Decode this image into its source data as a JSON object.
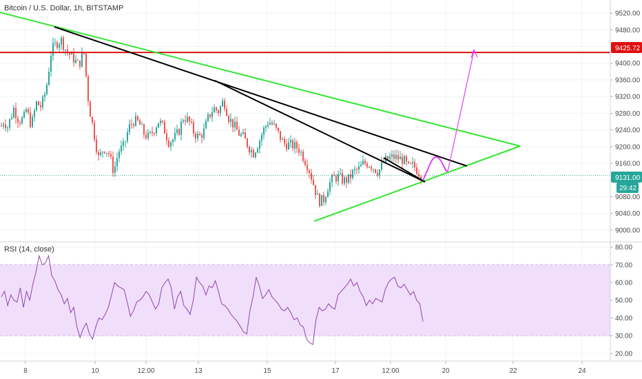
{
  "chart_title": "Bitcoin / U.S. Dollar, 1h, BITSTAMP",
  "rsi_label": "RSI (14, close)",
  "badges": {
    "resistance": "9425.72",
    "last_price": "9131.00",
    "countdown": "29:42"
  },
  "colors": {
    "up": "#26a69a",
    "down": "#ef5350",
    "resistance": "#e01010",
    "triangle": "#33e633",
    "trendline": "#000000",
    "projection": "#e040fb",
    "rsi_line": "#8e44ad",
    "rsi_band": "#f0defa",
    "last_price": "#26a69a"
  },
  "chart_data": [
    {
      "type": "candlestick",
      "title": "Bitcoin / U.S. Dollar, 1h, BITSTAMP",
      "y_ticks": [
        "9520.00",
        "9480.00",
        "9440.00",
        "9400.00",
        "9360.00",
        "9320.00",
        "9280.00",
        "9240.00",
        "9200.00",
        "9160.00",
        "9120.00",
        "9080.00",
        "9040.00",
        "9000.00"
      ],
      "ylim": [
        8990,
        9535
      ],
      "x_ticks": [
        "8",
        "10",
        "12:00",
        "13",
        "15",
        "17",
        "12:00",
        "20",
        "22",
        "24"
      ],
      "price_series": [
        {
          "x": 0,
          "p": 9250
        },
        {
          "x": 2,
          "p": 9262
        },
        {
          "x": 5,
          "p": 9248
        },
        {
          "x": 10,
          "p": 9292
        },
        {
          "x": 14,
          "p": 9262
        },
        {
          "x": 18,
          "p": 9268
        },
        {
          "x": 20,
          "p": 9290
        },
        {
          "x": 24,
          "p": 9250
        },
        {
          "x": 28,
          "p": 9305
        },
        {
          "x": 32,
          "p": 9295
        },
        {
          "x": 36,
          "p": 9340
        },
        {
          "x": 40,
          "p": 9430
        },
        {
          "x": 44,
          "p": 9448
        },
        {
          "x": 48,
          "p": 9455
        },
        {
          "x": 52,
          "p": 9430
        },
        {
          "x": 58,
          "p": 9410
        },
        {
          "x": 62,
          "p": 9395
        },
        {
          "x": 66,
          "p": 9430
        },
        {
          "x": 70,
          "p": 9300
        },
        {
          "x": 74,
          "p": 9235
        },
        {
          "x": 78,
          "p": 9170
        },
        {
          "x": 82,
          "p": 9198
        },
        {
          "x": 86,
          "p": 9185
        },
        {
          "x": 90,
          "p": 9140
        },
        {
          "x": 94,
          "p": 9190
        },
        {
          "x": 98,
          "p": 9200
        },
        {
          "x": 102,
          "p": 9245
        },
        {
          "x": 106,
          "p": 9262
        },
        {
          "x": 110,
          "p": 9258
        },
        {
          "x": 114,
          "p": 9232
        },
        {
          "x": 118,
          "p": 9222
        },
        {
          "x": 122,
          "p": 9240
        },
        {
          "x": 126,
          "p": 9262
        },
        {
          "x": 130,
          "p": 9245
        },
        {
          "x": 134,
          "p": 9212
        },
        {
          "x": 138,
          "p": 9218
        },
        {
          "x": 142,
          "p": 9236
        },
        {
          "x": 146,
          "p": 9272
        },
        {
          "x": 150,
          "p": 9262
        },
        {
          "x": 154,
          "p": 9235
        },
        {
          "x": 158,
          "p": 9222
        },
        {
          "x": 162,
          "p": 9235
        },
        {
          "x": 166,
          "p": 9272
        },
        {
          "x": 170,
          "p": 9292
        },
        {
          "x": 174,
          "p": 9285
        },
        {
          "x": 178,
          "p": 9312
        },
        {
          "x": 182,
          "p": 9270
        },
        {
          "x": 186,
          "p": 9252
        },
        {
          "x": 190,
          "p": 9232
        },
        {
          "x": 194,
          "p": 9222
        },
        {
          "x": 198,
          "p": 9200
        },
        {
          "x": 202,
          "p": 9185
        },
        {
          "x": 206,
          "p": 9210
        },
        {
          "x": 210,
          "p": 9240
        },
        {
          "x": 214,
          "p": 9262
        },
        {
          "x": 218,
          "p": 9250
        },
        {
          "x": 222,
          "p": 9230
        },
        {
          "x": 226,
          "p": 9208
        },
        {
          "x": 230,
          "p": 9205
        },
        {
          "x": 234,
          "p": 9202
        },
        {
          "x": 238,
          "p": 9196
        },
        {
          "x": 242,
          "p": 9175
        },
        {
          "x": 246,
          "p": 9150
        },
        {
          "x": 250,
          "p": 9110
        },
        {
          "x": 254,
          "p": 9070
        },
        {
          "x": 258,
          "p": 9072
        },
        {
          "x": 262,
          "p": 9108
        },
        {
          "x": 266,
          "p": 9125
        },
        {
          "x": 270,
          "p": 9128
        },
        {
          "x": 274,
          "p": 9118
        },
        {
          "x": 278,
          "p": 9122
        },
        {
          "x": 282,
          "p": 9140
        },
        {
          "x": 286,
          "p": 9145
        },
        {
          "x": 290,
          "p": 9160
        },
        {
          "x": 294,
          "p": 9160
        },
        {
          "x": 298,
          "p": 9150
        },
        {
          "x": 302,
          "p": 9140
        },
        {
          "x": 306,
          "p": 9162
        },
        {
          "x": 310,
          "p": 9172
        },
        {
          "x": 314,
          "p": 9175
        },
        {
          "x": 318,
          "p": 9172
        },
        {
          "x": 322,
          "p": 9168
        },
        {
          "x": 326,
          "p": 9150
        },
        {
          "x": 330,
          "p": 9155
        },
        {
          "x": 334,
          "p": 9140
        },
        {
          "x": 336,
          "p": 9131
        }
      ],
      "annotations": [
        {
          "kind": "resistance",
          "price": 9425.72
        },
        {
          "kind": "last_price",
          "price": 9131.0
        }
      ]
    },
    {
      "type": "line",
      "title": "RSI (14, close)",
      "y_ticks": [
        "80.00",
        "70.00",
        "60.00",
        "50.00",
        "40.00",
        "30.00",
        "20.00"
      ],
      "ylim": [
        18,
        81
      ],
      "band": [
        30,
        70
      ],
      "series": [
        {
          "values": [
            52,
            55,
            47,
            53,
            50,
            49,
            57,
            46,
            55,
            50,
            59,
            66,
            75,
            70,
            71,
            75,
            64,
            61,
            56,
            53,
            48,
            51,
            43,
            46,
            35,
            29,
            34,
            37,
            31,
            28,
            35,
            40,
            39,
            42,
            46,
            53,
            60,
            58,
            57,
            56,
            49,
            41,
            44,
            49,
            50,
            52,
            55,
            53,
            49,
            45,
            48,
            57,
            60,
            62,
            57,
            45,
            52,
            55,
            47,
            45,
            42,
            50,
            63,
            60,
            58,
            53,
            58,
            57,
            61,
            55,
            48,
            47,
            45,
            42,
            40,
            38,
            35,
            32,
            31,
            44,
            52,
            63,
            58,
            51,
            53,
            56,
            52,
            50,
            48,
            45,
            44,
            46,
            43,
            39,
            40,
            36,
            35,
            28,
            26,
            25,
            39,
            46,
            44,
            45,
            48,
            46,
            45,
            53,
            55,
            57,
            59,
            62,
            58,
            60,
            55,
            52,
            47,
            50,
            48,
            51,
            50,
            49,
            56,
            60,
            62,
            63,
            58,
            57,
            59,
            56,
            53,
            55,
            50,
            48,
            38
          ]
        }
      ]
    }
  ]
}
